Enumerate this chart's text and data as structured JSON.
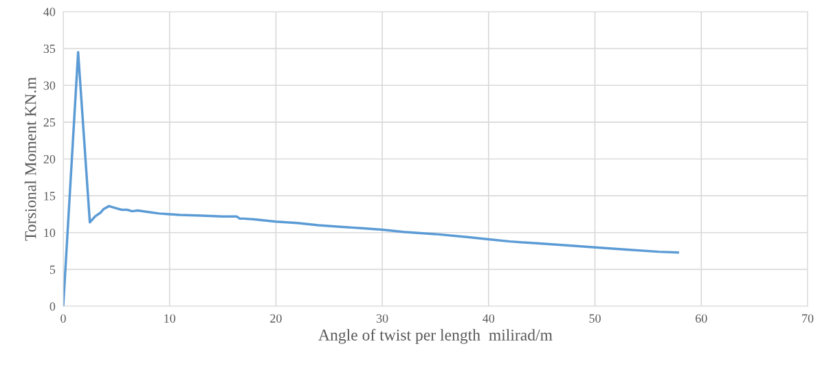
{
  "chart_data": {
    "type": "line",
    "xlabel": "Angle of twist per length  milirad/m",
    "ylabel": "Torsional Moment KN.m",
    "xlim": [
      0,
      70
    ],
    "xticks": [
      0,
      10,
      20,
      30,
      40,
      50,
      60,
      70
    ],
    "ylim": [
      0,
      40
    ],
    "yticks": [
      0,
      5,
      10,
      15,
      20,
      25,
      30,
      35,
      40
    ],
    "grid": true,
    "marker": "none",
    "line_style": "solid",
    "series": [
      {
        "color": "#5b9bd5",
        "x": [
          0,
          1.4,
          2.5,
          3,
          3.5,
          3.8,
          4.3,
          5,
          5.5,
          6,
          6.5,
          7,
          8,
          9,
          10,
          11,
          13,
          15,
          16.3,
          16.6,
          17,
          18,
          20,
          22,
          24,
          26,
          28,
          30,
          32,
          35,
          38,
          40,
          42,
          45,
          48,
          50,
          53,
          56,
          57.8
        ],
        "values": [
          0,
          34.5,
          11.4,
          12.2,
          12.7,
          13.2,
          13.6,
          13.3,
          13.1,
          13.1,
          12.9,
          13.0,
          12.8,
          12.6,
          12.5,
          12.4,
          12.3,
          12.2,
          12.2,
          11.9,
          11.9,
          11.8,
          11.5,
          11.3,
          11.0,
          10.8,
          10.6,
          10.4,
          10.1,
          9.8,
          9.4,
          9.1,
          8.8,
          8.5,
          8.2,
          8.0,
          7.7,
          7.4,
          7.3
        ]
      }
    ]
  }
}
